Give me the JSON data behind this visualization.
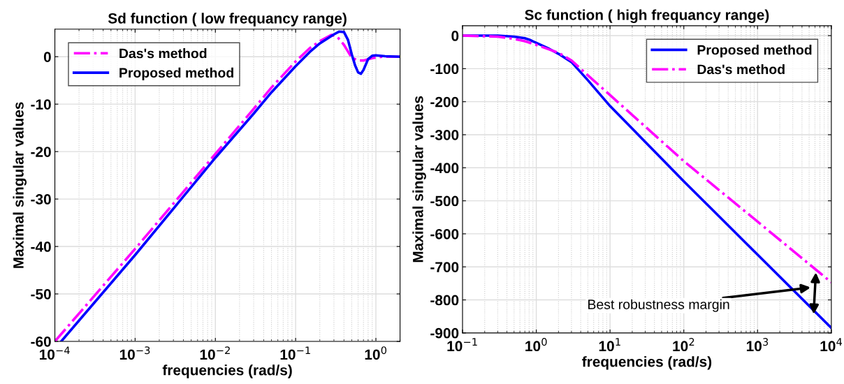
{
  "chart_data": [
    {
      "type": "line",
      "title": "Sd function ( low frequancy range)",
      "xlabel": "frequencies (rad/s)",
      "ylabel": "Maximal singular values",
      "log": "x",
      "grid": true,
      "legend": "top left",
      "xlim": [
        0.0001,
        2
      ],
      "ylim": [
        -60,
        5.8
      ],
      "xticks": [
        {
          "value": 0.0001,
          "label": "10$^{−4}$"
        },
        {
          "value": 0.001,
          "label": "10$^{−3}$"
        },
        {
          "value": 0.01,
          "label": "10$^{−2}$"
        },
        {
          "value": 0.1,
          "label": "10$^{−1}$"
        },
        {
          "value": 1,
          "label": "10$^{0}$"
        }
      ],
      "yticks": [
        -60,
        -50,
        -40,
        -30,
        -20,
        -10,
        0
      ],
      "series": [
        {
          "name": "Das's method",
          "color": "#ff00ff",
          "line_style": "dashdot",
          "x": [
            0.0001,
            0.001,
            0.01,
            0.03,
            0.05,
            0.1,
            0.15,
            0.2,
            0.28,
            0.33,
            0.4,
            0.5,
            0.6,
            0.7,
            0.9,
            1.2,
            2
          ],
          "values": [
            -60,
            -40.5,
            -20.5,
            -11,
            -6.5,
            -1,
            1.8,
            3.3,
            4.6,
            4.2,
            2.5,
            -0.2,
            -0.8,
            -0.8,
            -0.3,
            0,
            0
          ]
        },
        {
          "name": "Proposed method",
          "color": "#0000ff",
          "line_style": "solid",
          "x": [
            0.00012,
            0.001,
            0.01,
            0.03,
            0.05,
            0.1,
            0.15,
            0.2,
            0.3,
            0.35,
            0.4,
            0.45,
            0.5,
            0.55,
            0.6,
            0.65,
            0.7,
            0.8,
            0.9,
            1.0,
            1.3,
            2
          ],
          "values": [
            -60,
            -41.8,
            -21.3,
            -12,
            -7.5,
            -2,
            1,
            2.8,
            4.7,
            5.3,
            5.2,
            3.5,
            0.5,
            -1.8,
            -3.3,
            -3.6,
            -2.8,
            -0.5,
            0.2,
            0.3,
            0.1,
            0
          ]
        }
      ]
    },
    {
      "type": "line",
      "title": "Sc function ( high frequancy range)",
      "xlabel": "frequencies (rad/s)",
      "ylabel": "Maximal singular values",
      "log": "x",
      "grid": true,
      "legend": "top right",
      "xlim": [
        0.1,
        10000
      ],
      "ylim": [
        -900,
        30
      ],
      "xticks": [
        {
          "value": 0.1,
          "label": "10$^{−1}$"
        },
        {
          "value": 1,
          "label": "10$^{0}$"
        },
        {
          "value": 10,
          "label": "10$^{1}$"
        },
        {
          "value": 100,
          "label": "10$^{2}$"
        },
        {
          "value": 1000,
          "label": "10$^{3}$"
        },
        {
          "value": 10000,
          "label": "10$^{4}$"
        }
      ],
      "yticks": [
        -900,
        -800,
        -700,
        -600,
        -500,
        -400,
        -300,
        -200,
        -100,
        0
      ],
      "annotations": [
        "Best robustness margin"
      ],
      "series": [
        {
          "name": "Proposed method",
          "color": "#0000ff",
          "line_style": "solid",
          "x": [
            0.1,
            0.3,
            0.5,
            0.7,
            0.8,
            1,
            1.5,
            2,
            3,
            5,
            10,
            100,
            1000,
            10000
          ],
          "values": [
            0,
            0,
            -3,
            -8,
            -12,
            -22,
            -40,
            -55,
            -80,
            -135,
            -213,
            -441,
            -663,
            -885
          ]
        },
        {
          "name": "Das's method",
          "color": "#ff00ff",
          "line_style": "dashdot",
          "x": [
            0.1,
            0.3,
            0.5,
            0.7,
            1,
            1.5,
            2,
            3,
            5,
            10,
            100,
            1000,
            10000
          ],
          "values": [
            0,
            -3,
            -10,
            -17,
            -28,
            -42,
            -52,
            -75,
            -120,
            -180,
            -380,
            -563,
            -747
          ]
        }
      ]
    }
  ]
}
